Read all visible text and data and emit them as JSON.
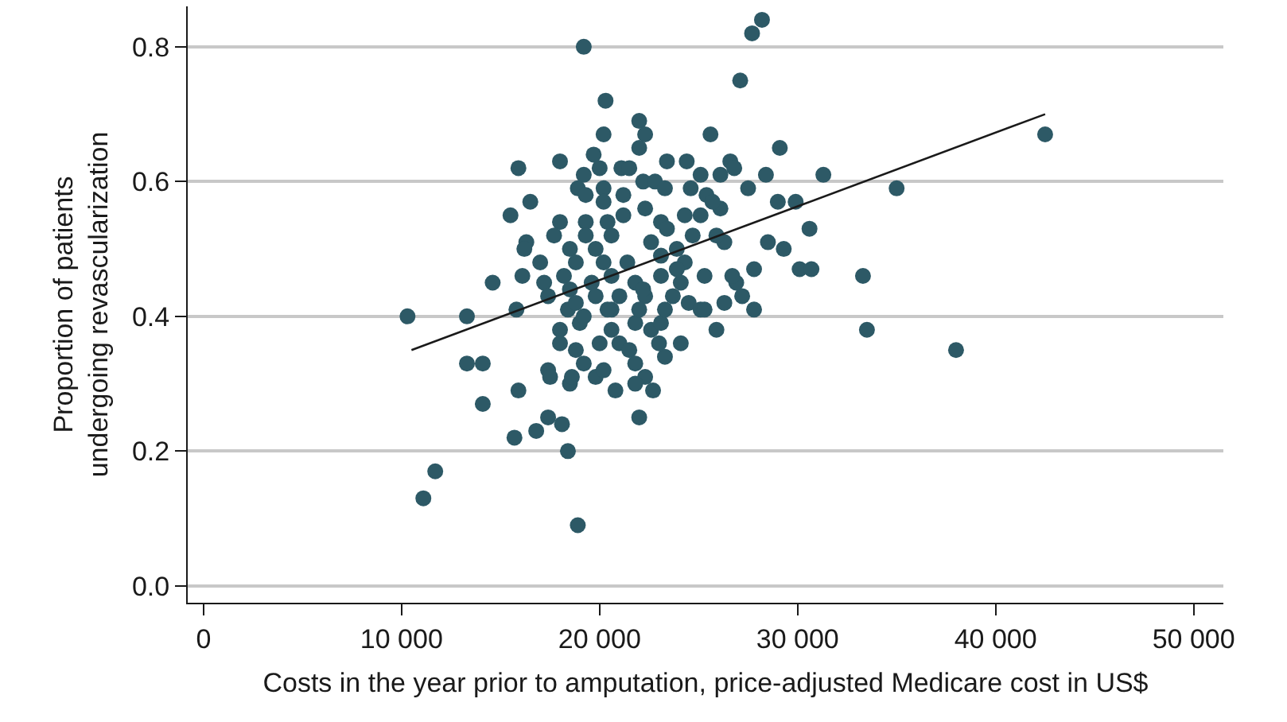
{
  "chart_data": {
    "type": "scatter",
    "xlabel": "Costs in the year prior to amputation, price-adjusted Medicare cost in US$",
    "ylabel": "Proportion of patients undergoing revascularization",
    "xlim": [
      -800,
      51500
    ],
    "ylim": [
      -0.025,
      0.86
    ],
    "xticks": [
      0,
      {
        "value": 10000,
        "label": "10 000"
      },
      {
        "value": 20000,
        "label": "20 000"
      },
      {
        "value": 30000,
        "label": "30 000"
      },
      {
        "value": 40000,
        "label": "40 000"
      },
      {
        "value": 50000,
        "label": "50 000"
      }
    ],
    "yticks": [
      {
        "value": 0,
        "label": "0.0"
      },
      0.2,
      0.4,
      0.6,
      0.8
    ],
    "grid": "y",
    "marker": "circle",
    "series": [
      {
        "color": "#2d5966",
        "x": [
          10300,
          11100,
          11700,
          13300,
          13300,
          14100,
          14100,
          14600,
          15500,
          15900,
          15900,
          15700,
          15800,
          16800,
          17400,
          18100,
          18400,
          18900,
          19200,
          20300,
          20200,
          22000,
          22300,
          22000,
          19700,
          18000,
          19200,
          20000,
          21100,
          21500,
          23400,
          24400,
          25100,
          18900,
          19300,
          20200,
          20200,
          21200,
          22200,
          22800,
          23300,
          24600,
          16500,
          18000,
          19300,
          20400,
          21200,
          22300,
          23100,
          24300,
          16300,
          17700,
          16200,
          19300,
          20600,
          22600,
          23400,
          24700,
          17000,
          18500,
          19800,
          18800,
          20200,
          21400,
          23100,
          23900,
          24300,
          16100,
          17200,
          18200,
          19600,
          20600,
          21800,
          23100,
          23900,
          17400,
          18500,
          19800,
          21000,
          22300,
          23700,
          17400,
          17500,
          18500,
          18600,
          19800,
          20200,
          20800,
          22000,
          22700,
          22300,
          21800,
          23300,
          24100,
          23000,
          18000,
          18000,
          18400,
          19000,
          18800,
          19200,
          20000,
          20600,
          21000,
          21500,
          21800,
          20600,
          21800,
          22600,
          23100,
          23300,
          24500,
          25100,
          27700,
          28200,
          27100,
          25600,
          29100,
          26600,
          26800,
          28400,
          31300,
          35000,
          42500,
          27500,
          29000,
          29900,
          30600,
          28500,
          29300,
          27800,
          30100,
          30700,
          33300,
          26300,
          26900,
          27200,
          26700,
          27800,
          26300,
          33500,
          38000,
          25900,
          25300,
          25900,
          26100,
          25400,
          26100,
          18800,
          20400,
          22000,
          19200,
          22200,
          24100,
          25300,
          25700,
          25100
        ],
        "values": [
          0.4,
          0.13,
          0.17,
          0.4,
          0.33,
          0.33,
          0.27,
          0.45,
          0.55,
          0.62,
          0.29,
          0.22,
          0.41,
          0.23,
          0.25,
          0.24,
          0.2,
          0.09,
          0.8,
          0.72,
          0.67,
          0.69,
          0.67,
          0.65,
          0.64,
          0.63,
          0.61,
          0.62,
          0.62,
          0.62,
          0.63,
          0.63,
          0.61,
          0.59,
          0.58,
          0.59,
          0.57,
          0.58,
          0.6,
          0.6,
          0.59,
          0.59,
          0.57,
          0.54,
          0.54,
          0.54,
          0.55,
          0.56,
          0.54,
          0.55,
          0.51,
          0.52,
          0.5,
          0.52,
          0.52,
          0.51,
          0.53,
          0.52,
          0.48,
          0.5,
          0.5,
          0.48,
          0.48,
          0.48,
          0.49,
          0.5,
          0.48,
          0.46,
          0.45,
          0.46,
          0.45,
          0.46,
          0.45,
          0.46,
          0.47,
          0.43,
          0.44,
          0.43,
          0.43,
          0.43,
          0.43,
          0.32,
          0.31,
          0.3,
          0.31,
          0.31,
          0.32,
          0.29,
          0.25,
          0.29,
          0.31,
          0.3,
          0.34,
          0.36,
          0.36,
          0.38,
          0.36,
          0.41,
          0.39,
          0.35,
          0.33,
          0.36,
          0.41,
          0.36,
          0.35,
          0.33,
          0.38,
          0.39,
          0.38,
          0.39,
          0.41,
          0.42,
          0.41,
          0.82,
          0.84,
          0.75,
          0.67,
          0.65,
          0.63,
          0.62,
          0.61,
          0.61,
          0.59,
          0.67,
          0.59,
          0.57,
          0.57,
          0.53,
          0.51,
          0.5,
          0.47,
          0.47,
          0.47,
          0.46,
          0.51,
          0.45,
          0.43,
          0.46,
          0.41,
          0.42,
          0.38,
          0.35,
          0.38,
          0.41,
          0.52,
          0.56,
          0.58,
          0.61,
          0.42,
          0.41,
          0.41,
          0.4,
          0.44,
          0.45,
          0.46,
          0.57,
          0.55
        ]
      },
      {
        "type": "line",
        "color": "#1a1a1a",
        "marker": "none",
        "x": [
          10500,
          42500
        ],
        "values": [
          0.35,
          0.7
        ]
      }
    ]
  }
}
